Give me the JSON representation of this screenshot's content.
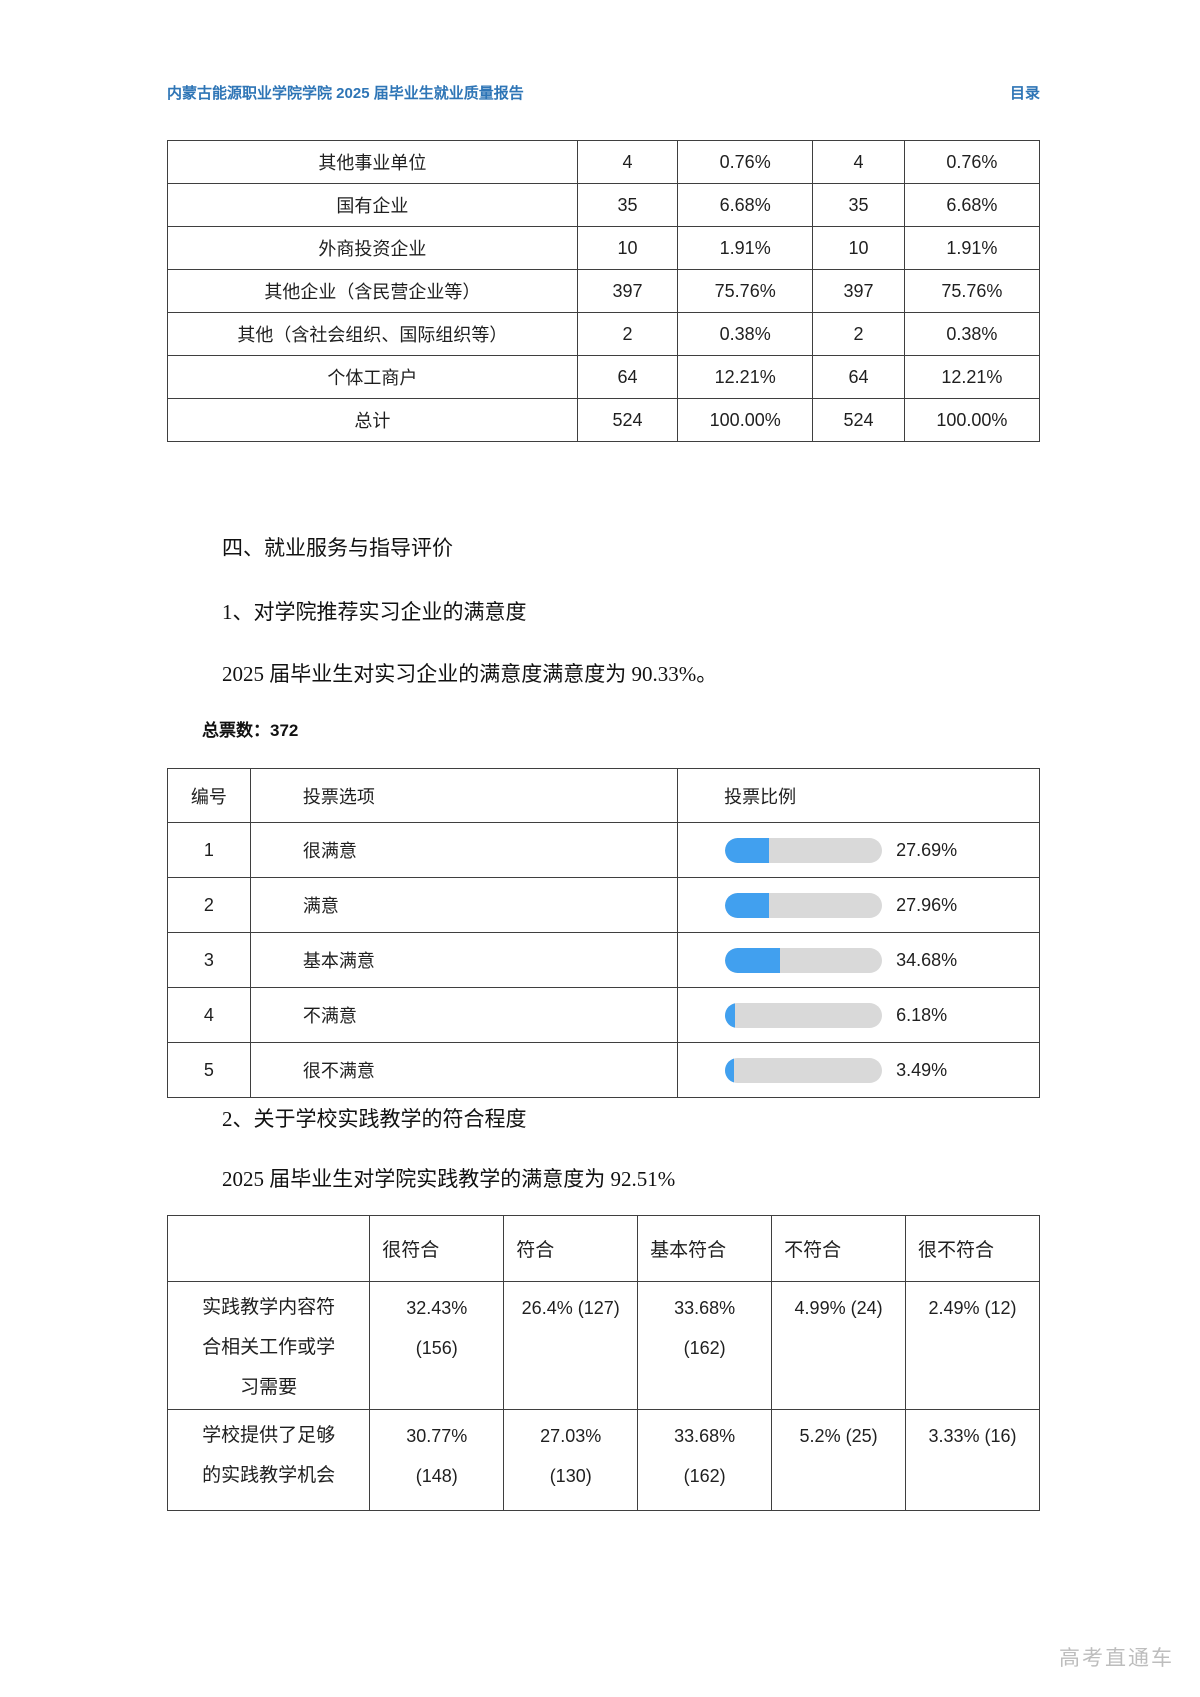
{
  "header": {
    "title": "内蒙古能源职业学院学院 2025 届毕业生就业质量报告",
    "toc": "目录"
  },
  "employer_table": {
    "rows": [
      {
        "label": "其他事业单位",
        "c1": "4",
        "c2": "0.76%",
        "c3": "4",
        "c4": "0.76%"
      },
      {
        "label": "国有企业",
        "c1": "35",
        "c2": "6.68%",
        "c3": "35",
        "c4": "6.68%"
      },
      {
        "label": "外商投资企业",
        "c1": "10",
        "c2": "1.91%",
        "c3": "10",
        "c4": "1.91%"
      },
      {
        "label": "其他企业（含民营企业等）",
        "c1": "397",
        "c2": "75.76%",
        "c3": "397",
        "c4": "75.76%"
      },
      {
        "label": "其他（含社会组织、国际组织等）",
        "c1": "2",
        "c2": "0.38%",
        "c3": "2",
        "c4": "0.38%"
      },
      {
        "label": "个体工商户",
        "c1": "64",
        "c2": "12.21%",
        "c3": "64",
        "c4": "12.21%"
      },
      {
        "label": "总计",
        "c1": "524",
        "c2": "100.00%",
        "c3": "524",
        "c4": "100.00%"
      }
    ]
  },
  "section4": {
    "heading": "四、就业服务与指导评价",
    "item1_heading": "1、对学院推荐实习企业的满意度",
    "item1_text": "2025 届毕业生对实习企业的满意度满意度为 90.33%。",
    "total_votes": "总票数：372"
  },
  "vote_table": {
    "col_num": "编号",
    "col_option": "投票选项",
    "col_ratio": "投票比例",
    "bar_color": "#41a0ef",
    "track_color": "#d9d9d9",
    "rows": [
      {
        "num": "1",
        "option": "很满意",
        "pct_text": "27.69%",
        "pct": 27.69
      },
      {
        "num": "2",
        "option": "满意",
        "pct_text": "27.96%",
        "pct": 27.96
      },
      {
        "num": "3",
        "option": "基本满意",
        "pct_text": "34.68%",
        "pct": 34.68
      },
      {
        "num": "4",
        "option": "不满意",
        "pct_text": "6.18%",
        "pct": 6.18
      },
      {
        "num": "5",
        "option": "很不满意",
        "pct_text": "3.49%",
        "pct": 3.49
      }
    ]
  },
  "item2": {
    "heading": "2、关于学校实践教学的符合程度",
    "text": "2025 届毕业生对学院实践教学的满意度为 92.51%"
  },
  "practice_table": {
    "headers": {
      "h1": "很符合",
      "h2": "符合",
      "h3": "基本符合",
      "h4": "不符合",
      "h5": "很不符合"
    },
    "rows": [
      {
        "label": {
          "l1": "实践教学内容符",
          "l2": "合相关工作或学",
          "l3": "习需要"
        },
        "c1": {
          "l1": "32.43%",
          "l2": "(156)"
        },
        "c2": {
          "l1": "26.4% (127)"
        },
        "c3": {
          "l1": "33.68%",
          "l2": "(162)"
        },
        "c4": {
          "l1": "4.99% (24)"
        },
        "c5": {
          "l1": "2.49% (12)"
        }
      },
      {
        "label": {
          "l1": "学校提供了足够",
          "l2": "的实践教学机会"
        },
        "c1": {
          "l1": "30.77%",
          "l2": "(148)"
        },
        "c2": {
          "l1": "27.03%",
          "l2": "(130)"
        },
        "c3": {
          "l1": "33.68%",
          "l2": "(162)"
        },
        "c4": {
          "l1": "5.2% (25)"
        },
        "c5": {
          "l1": "3.33% (16)"
        }
      }
    ]
  },
  "watermark": "高考直通车"
}
